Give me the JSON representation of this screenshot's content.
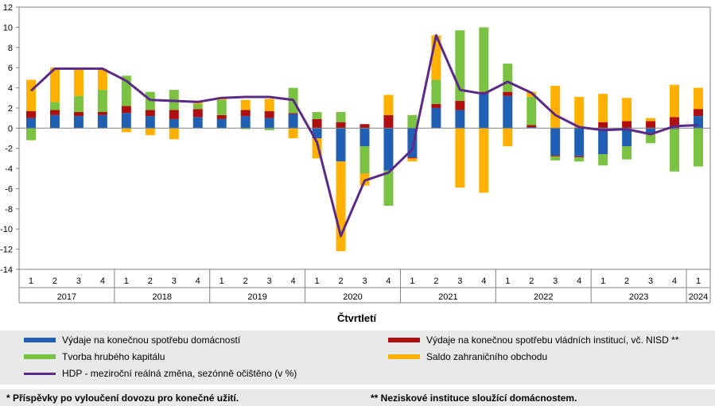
{
  "chart_data": {
    "type": "bar",
    "stacked": true,
    "xlabel": "Čtvrtletí",
    "ylim": [
      -14,
      12
    ],
    "yticks": [
      -14,
      -12,
      -10,
      -8,
      -6,
      -4,
      -2,
      0,
      2,
      4,
      6,
      8,
      10,
      12
    ],
    "categories": [
      "1",
      "2",
      "3",
      "4",
      "1",
      "2",
      "3",
      "4",
      "1",
      "2",
      "3",
      "4",
      "1",
      "2",
      "3",
      "4",
      "1",
      "2",
      "3",
      "4",
      "1",
      "2",
      "3",
      "4",
      "1",
      "2",
      "3",
      "4",
      "1"
    ],
    "year_groups": [
      {
        "label": "2017",
        "count": 4
      },
      {
        "label": "2018",
        "count": 4
      },
      {
        "label": "2019",
        "count": 4
      },
      {
        "label": "2020",
        "count": 4
      },
      {
        "label": "2021",
        "count": 4
      },
      {
        "label": "2022",
        "count": 4
      },
      {
        "label": "2023",
        "count": 4
      },
      {
        "label": "2024",
        "count": 1
      }
    ],
    "series": [
      {
        "name": "Výdaje na konečnou spotřebu domácností",
        "type": "bar",
        "color": "#1f5fb4",
        "values": [
          1.0,
          1.3,
          1.2,
          1.3,
          1.5,
          1.2,
          0.9,
          1.1,
          0.9,
          1.2,
          1.0,
          1.4,
          -1.0,
          -3.3,
          -1.8,
          -4.2,
          -2.9,
          2.0,
          1.8,
          3.4,
          3.2,
          0.1,
          -2.7,
          -2.8,
          -2.6,
          -1.8,
          -0.5,
          -0.1,
          1.2
        ]
      },
      {
        "name": "Výdaje na konečnou spotřebu vládních institucí, vč. NISD **",
        "type": "bar",
        "color": "#b00f0f",
        "values": [
          0.7,
          0.5,
          0.4,
          0.3,
          0.7,
          0.6,
          0.9,
          0.8,
          0.4,
          0.6,
          0.7,
          0.1,
          0.9,
          0.6,
          0.4,
          1.3,
          -0.1,
          0.4,
          0.9,
          0.2,
          0.4,
          0.2,
          -0.1,
          -0.1,
          0.6,
          0.7,
          0.7,
          1.1,
          0.7
        ]
      },
      {
        "name": "Tvorba hrubého kapitálu",
        "type": "bar",
        "color": "#7cc242",
        "values": [
          -1.2,
          0.8,
          1.6,
          2.2,
          3.0,
          1.8,
          2.0,
          0.5,
          1.5,
          -0.1,
          -0.2,
          2.5,
          0.7,
          1.0,
          -2.7,
          -3.5,
          1.3,
          2.4,
          7.0,
          6.4,
          2.8,
          2.8,
          -0.4,
          -0.4,
          -1.1,
          -1.3,
          -1.0,
          -4.2,
          -3.8
        ]
      },
      {
        "name": "Saldo zahraničního obchodu",
        "type": "bar",
        "color": "#ffb000",
        "values": [
          3.1,
          3.4,
          2.6,
          2.1,
          -0.4,
          -0.7,
          -1.1,
          0.3,
          0.3,
          1.0,
          1.2,
          -1.0,
          -2.0,
          -8.9,
          -1.2,
          2.0,
          -0.3,
          4.4,
          -5.9,
          -6.4,
          -1.8,
          0.5,
          4.2,
          3.1,
          2.8,
          2.3,
          0.3,
          3.2,
          2.1
        ]
      },
      {
        "name": "HDP - meziroční reálná změna, sezónně očištěno (v %)",
        "type": "line",
        "color": "#5b2a86",
        "values": [
          3.7,
          5.9,
          5.9,
          5.9,
          4.7,
          2.8,
          2.7,
          2.6,
          3.0,
          3.1,
          3.1,
          2.8,
          -1.4,
          -10.7,
          -5.2,
          -4.4,
          -2.1,
          9.2,
          3.8,
          3.4,
          4.6,
          3.5,
          1.3,
          0.1,
          -0.2,
          -0.1,
          -0.6,
          0.2,
          0.3
        ]
      }
    ]
  },
  "notes": {
    "left": "* Příspěvky po vyloučení dovozu pro konečné užití.",
    "right": "** Neziskové instituce sloužící domácnostem."
  }
}
